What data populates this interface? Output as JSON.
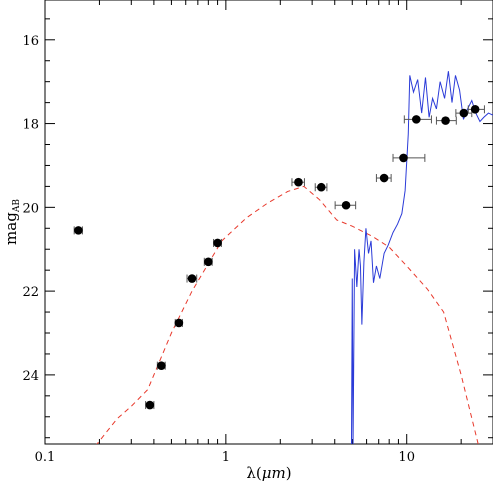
{
  "chart_data": {
    "type": "scatter",
    "xlabel_main": "λ(",
    "xlabel_unit": "μm",
    "xlabel_close": ")",
    "ylabel_main": "mag",
    "ylabel_sub": "AB",
    "x_scale": "log",
    "xlim": [
      0.1,
      30
    ],
    "ylim": [
      25.65,
      15.05
    ],
    "y_inverted": true,
    "x_ticks": [
      {
        "value": 0.1,
        "label": "0.1"
      },
      {
        "value": 1,
        "label": "1"
      },
      {
        "value": 10,
        "label": "10"
      }
    ],
    "y_ticks": [
      {
        "value": 16,
        "label": "16"
      },
      {
        "value": 18,
        "label": "18"
      },
      {
        "value": 20,
        "label": "20"
      },
      {
        "value": 22,
        "label": "22"
      },
      {
        "value": 24,
        "label": "24"
      }
    ],
    "colors": {
      "photometry": "#000000",
      "dashed_model": "#e8392c",
      "solid_model": "#2b3bd8"
    },
    "series": [
      {
        "style": "markers-with-xerr",
        "x": [
          0.153,
          0.38,
          0.44,
          0.55,
          0.65,
          0.8,
          0.9,
          2.52,
          3.37,
          4.62,
          7.5,
          9.6,
          11.3,
          16.4,
          20.7,
          23.9
        ],
        "y": [
          20.55,
          24.72,
          23.78,
          22.76,
          21.7,
          21.3,
          20.85,
          19.4,
          19.52,
          19.95,
          19.3,
          18.82,
          17.9,
          17.93,
          17.75,
          17.66
        ],
        "xerr_low": [
          0.008,
          0.02,
          0.022,
          0.025,
          0.04,
          0.04,
          0.045,
          0.2,
          0.25,
          0.6,
          0.7,
          1.2,
          1.6,
          1.8,
          2.0,
          2.0
        ],
        "xerr_high": [
          0.008,
          0.02,
          0.022,
          0.025,
          0.04,
          0.04,
          0.045,
          0.2,
          0.25,
          0.6,
          0.7,
          3.0,
          2.4,
          2.4,
          2.2,
          3.0
        ]
      },
      {
        "style": "dashed-line",
        "x": [
          0.19,
          0.25,
          0.3,
          0.37,
          0.5,
          0.65,
          0.95,
          1.3,
          1.7,
          2.2,
          2.7,
          3.3,
          4.1,
          5.0,
          6.5,
          8.0,
          10.0,
          13.0,
          16.0,
          20.0,
          25.0
        ],
        "y": [
          25.7,
          25.05,
          24.75,
          24.35,
          23.0,
          22.0,
          20.8,
          20.25,
          19.9,
          19.62,
          19.5,
          19.82,
          20.3,
          20.45,
          20.7,
          20.95,
          21.4,
          21.95,
          22.5,
          24.0,
          25.7
        ]
      },
      {
        "style": "solid-line",
        "x": [
          4.95,
          5.0,
          5.05,
          5.15,
          5.3,
          5.45,
          5.55,
          5.65,
          5.8,
          5.95,
          6.15,
          6.35,
          6.55,
          6.8,
          7.1,
          7.5,
          7.9,
          8.4,
          8.9,
          9.4,
          9.8,
          10.2,
          10.4,
          10.9,
          11.5,
          12.1,
          12.7,
          13.3,
          13.9,
          14.6,
          15.3,
          16.2,
          17.0,
          17.8,
          18.6,
          19.6,
          20.6,
          21.7,
          22.9,
          24.1,
          25.4,
          26.7,
          28.3,
          30.0
        ],
        "y": [
          25.7,
          21.7,
          25.7,
          21.0,
          21.9,
          21.0,
          21.4,
          22.8,
          21.3,
          20.5,
          21.1,
          20.8,
          21.8,
          21.4,
          21.7,
          21.1,
          20.9,
          20.6,
          20.4,
          20.15,
          19.6,
          18.25,
          16.85,
          17.25,
          16.95,
          17.75,
          16.9,
          17.85,
          17.4,
          17.65,
          17.0,
          17.4,
          16.75,
          17.5,
          16.85,
          17.2,
          17.9,
          17.65,
          17.45,
          17.75,
          17.95,
          17.85,
          17.75,
          17.8
        ]
      }
    ]
  }
}
